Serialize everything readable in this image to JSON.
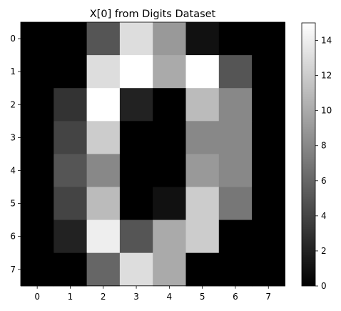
{
  "chart_data": {
    "type": "heatmap",
    "title": "X[0] from Digits Dataset",
    "xlabel": "",
    "ylabel": "",
    "x_ticks": [
      "0",
      "1",
      "2",
      "3",
      "4",
      "5",
      "6",
      "7"
    ],
    "y_ticks": [
      "0",
      "1",
      "2",
      "3",
      "4",
      "5",
      "6",
      "7"
    ],
    "colormap": "gray",
    "vmin": 0,
    "vmax": 15,
    "colorbar_ticks": [
      "0",
      "2",
      "4",
      "6",
      "8",
      "10",
      "12",
      "14"
    ],
    "values": [
      [
        0,
        0,
        5,
        13,
        9,
        1,
        0,
        0
      ],
      [
        0,
        0,
        13,
        15,
        10,
        15,
        5,
        0
      ],
      [
        0,
        3,
        15,
        2,
        0,
        11,
        8,
        0
      ],
      [
        0,
        4,
        12,
        0,
        0,
        8,
        8,
        0
      ],
      [
        0,
        5,
        8,
        0,
        0,
        9,
        8,
        0
      ],
      [
        0,
        4,
        11,
        0,
        1,
        12,
        7,
        0
      ],
      [
        0,
        2,
        14,
        5,
        10,
        12,
        0,
        0
      ],
      [
        0,
        0,
        6,
        13,
        10,
        0,
        0,
        0
      ]
    ],
    "grid": false,
    "colorbar_position": "right"
  }
}
